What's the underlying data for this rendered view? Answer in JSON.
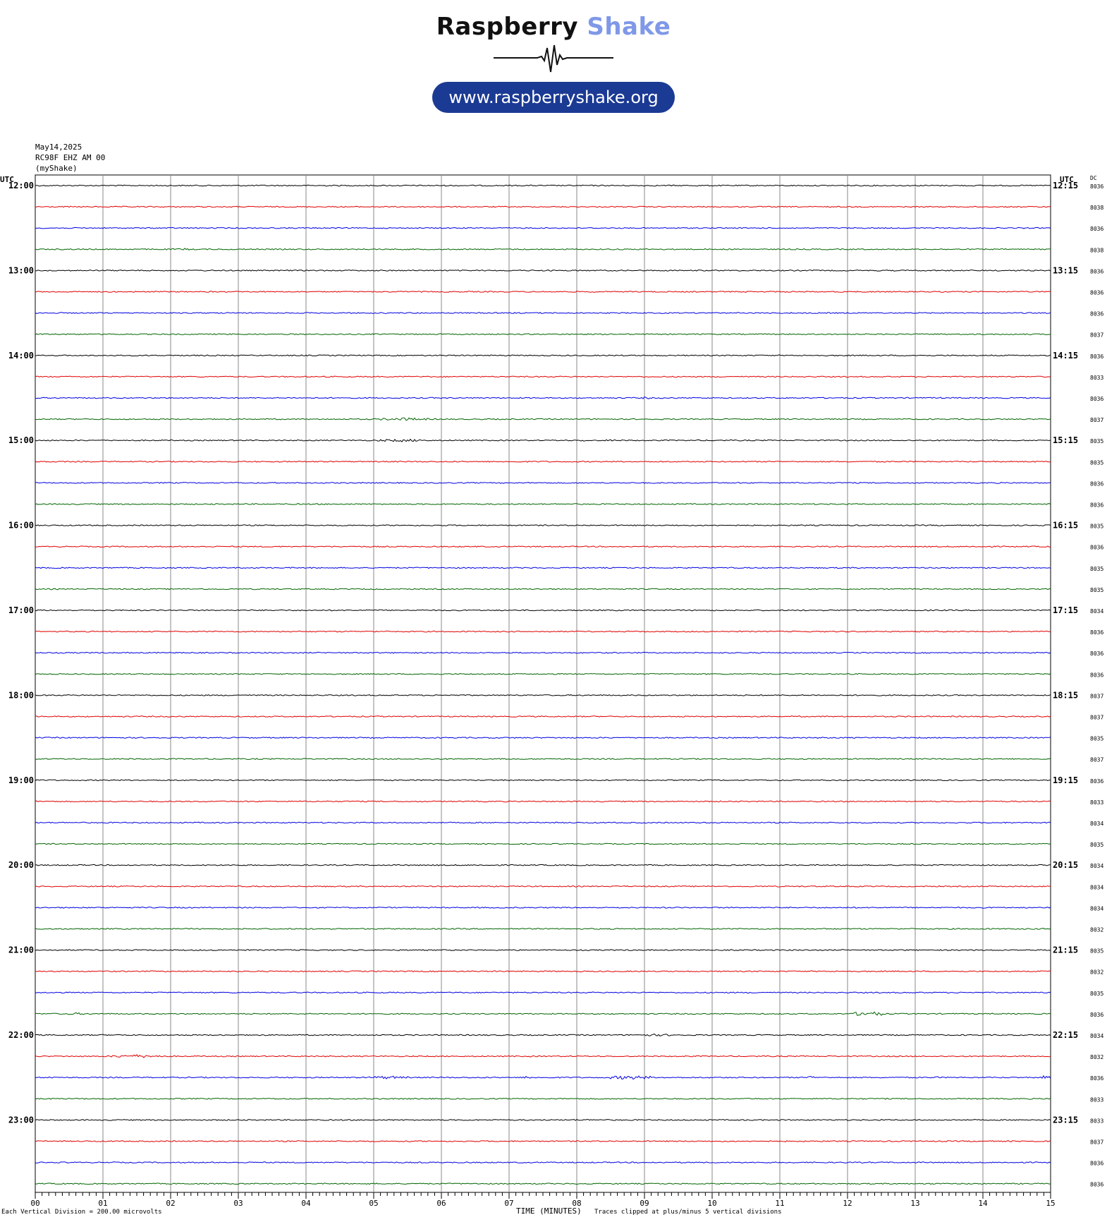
{
  "brand": {
    "name_a": "Raspberry",
    "name_b": "Shake",
    "url": "www.raspberryshake.org",
    "colors": {
      "dark": "#111111",
      "accent": "#7f98e8",
      "pill": "#1b3a94"
    }
  },
  "header": {
    "date": "May14,2025",
    "station": "RC98F EHZ AM 00",
    "source": "(myShake)"
  },
  "footer": {
    "division": "Each Vertical Division =  200.00 microvolts",
    "xaxis_title": "TIME (MINUTES)",
    "clip_note": "Traces clipped at plus/minus 5 vertical divisions"
  },
  "chart_data": {
    "type": "line",
    "title": "",
    "xlabel": "TIME (MINUTES)",
    "ylabel": "UTC",
    "xlim": [
      0,
      15
    ],
    "x_ticks": [
      "00",
      "01",
      "02",
      "03",
      "04",
      "05",
      "06",
      "07",
      "08",
      "09",
      "10",
      "11",
      "12",
      "13",
      "14",
      "15"
    ],
    "left_axis_label": "UTC",
    "right_axis_label": "UTC",
    "dc_header": "DC",
    "trace_colors": [
      "#000000",
      "#e00000",
      "#0000e0",
      "#006400"
    ],
    "left_hour_labels": [
      "12:00",
      "13:00",
      "14:00",
      "15:00",
      "16:00",
      "17:00",
      "18:00",
      "19:00",
      "20:00",
      "21:00",
      "22:00",
      "23:00"
    ],
    "right_hour_labels": [
      "12:15",
      "13:15",
      "14:15",
      "15:15",
      "16:15",
      "17:15",
      "18:15",
      "19:15",
      "20:15",
      "21:15",
      "22:15",
      "23:15"
    ],
    "dc_values": [
      "8036",
      "8038",
      "8036",
      "8038",
      "8036",
      "8036",
      "8036",
      "8037",
      "8036",
      "8033",
      "8036",
      "8037",
      "8035",
      "8035",
      "8036",
      "8036",
      "8035",
      "8036",
      "8035",
      "8035",
      "8034",
      "8036",
      "8036",
      "8036",
      "8037",
      "8037",
      "8035",
      "8037",
      "8036",
      "8033",
      "8034",
      "8035",
      "8034",
      "8034",
      "8034",
      "8032",
      "8035",
      "8032",
      "8035",
      "8036",
      "8034",
      "8032",
      "8036",
      "8033",
      "8033",
      "8037",
      "8036",
      "8036"
    ],
    "events": [
      {
        "trace": 3,
        "start": 2.1,
        "end": 2.3,
        "amp": 2.2
      },
      {
        "trace": 3,
        "start": 3.3,
        "end": 3.4,
        "amp": 1.4
      },
      {
        "trace": 3,
        "start": 0.9,
        "end": 1.0,
        "amp": 1.2
      },
      {
        "trace": 4,
        "start": 10.8,
        "end": 12.2,
        "amp": 1.3
      },
      {
        "trace": 5,
        "start": 5.5,
        "end": 7.5,
        "amp": 1.2
      },
      {
        "trace": 10,
        "start": 6.2,
        "end": 6.3,
        "amp": 2.0
      },
      {
        "trace": 10,
        "start": 8.95,
        "end": 9.1,
        "amp": 2.4
      },
      {
        "trace": 10,
        "start": 13.3,
        "end": 13.4,
        "amp": 2.0
      },
      {
        "trace": 11,
        "start": 5.1,
        "end": 5.8,
        "amp": 3.0
      },
      {
        "trace": 12,
        "start": 5.05,
        "end": 5.8,
        "amp": 2.8
      },
      {
        "trace": 12,
        "start": 8.05,
        "end": 8.15,
        "amp": 2.0
      },
      {
        "trace": 12,
        "start": 8.4,
        "end": 8.6,
        "amp": 2.0
      },
      {
        "trace": 27,
        "start": 1.1,
        "end": 1.6,
        "amp": 1.4
      },
      {
        "trace": 27,
        "start": 9.1,
        "end": 9.2,
        "amp": 1.4
      },
      {
        "trace": 37,
        "start": 5.0,
        "end": 5.1,
        "amp": 1.5
      },
      {
        "trace": 39,
        "start": 0.4,
        "end": 0.8,
        "amp": 2.2
      },
      {
        "trace": 39,
        "start": 12.1,
        "end": 12.5,
        "amp": 5.0
      },
      {
        "trace": 40,
        "start": 8.8,
        "end": 9.5,
        "amp": 2.2
      },
      {
        "trace": 41,
        "start": 1.1,
        "end": 1.9,
        "amp": 3.2
      },
      {
        "trace": 41,
        "start": 7.3,
        "end": 7.35,
        "amp": 2.0
      },
      {
        "trace": 42,
        "start": 0.2,
        "end": 0.25,
        "amp": 3.0
      },
      {
        "trace": 42,
        "start": 4.9,
        "end": 5.5,
        "amp": 3.0
      },
      {
        "trace": 42,
        "start": 7.2,
        "end": 7.35,
        "amp": 3.2
      },
      {
        "trace": 42,
        "start": 8.5,
        "end": 9.1,
        "amp": 4.0
      },
      {
        "trace": 42,
        "start": 11.4,
        "end": 11.5,
        "amp": 3.5
      },
      {
        "trace": 42,
        "start": 13.3,
        "end": 13.35,
        "amp": 3.0
      },
      {
        "trace": 42,
        "start": 14.85,
        "end": 15.0,
        "amp": 4.0
      },
      {
        "trace": 43,
        "start": 13.5,
        "end": 13.7,
        "amp": 1.4
      },
      {
        "trace": 44,
        "start": 7.5,
        "end": 8.7,
        "amp": 1.5
      },
      {
        "trace": 46,
        "start": 3.2,
        "end": 8.0,
        "amp": 1.1
      },
      {
        "trace": 47,
        "start": 3.5,
        "end": 6.5,
        "amp": 1.2
      },
      {
        "trace": 47,
        "start": 12.5,
        "end": 14.0,
        "amp": 1.3
      }
    ]
  }
}
